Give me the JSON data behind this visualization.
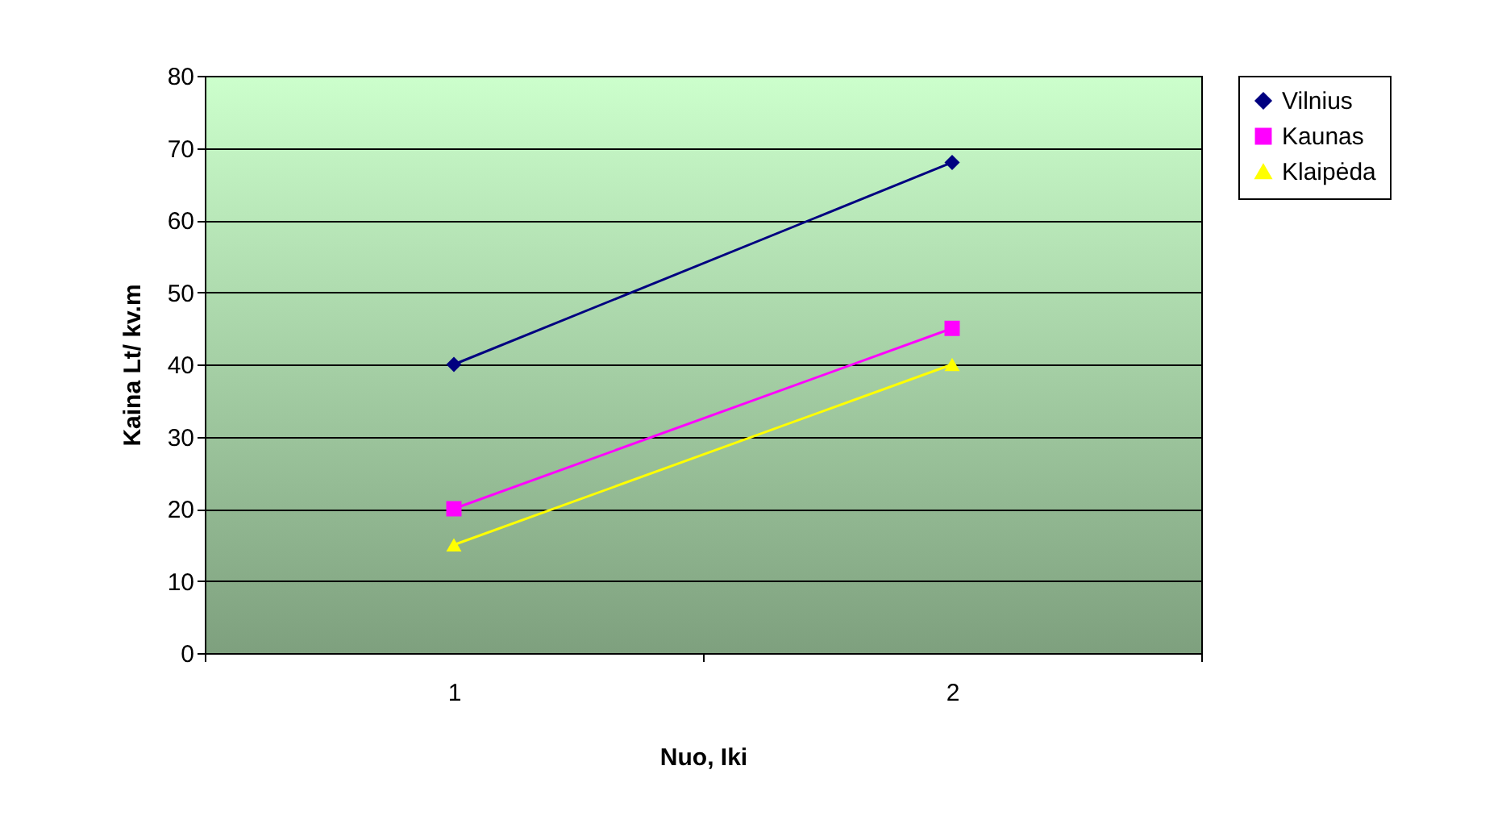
{
  "chart_data": {
    "type": "line",
    "xlabel": "Nuo, Iki",
    "ylabel": "Kaina Lt/ kv.m",
    "categories": [
      "1",
      "2"
    ],
    "ylim": [
      0,
      80
    ],
    "yticks": [
      0,
      10,
      20,
      30,
      40,
      50,
      60,
      70,
      80
    ],
    "grid": "y",
    "legend": "right",
    "series": [
      {
        "name": "Vilnius",
        "color": "#000080",
        "marker": "diamond",
        "values": [
          40,
          68
        ]
      },
      {
        "name": "Kaunas",
        "color": "#ff00ff",
        "marker": "square",
        "values": [
          20,
          45
        ]
      },
      {
        "name": "Klaipėda",
        "color": "#ffff00",
        "marker": "triangle",
        "values": [
          15,
          40
        ]
      }
    ]
  }
}
